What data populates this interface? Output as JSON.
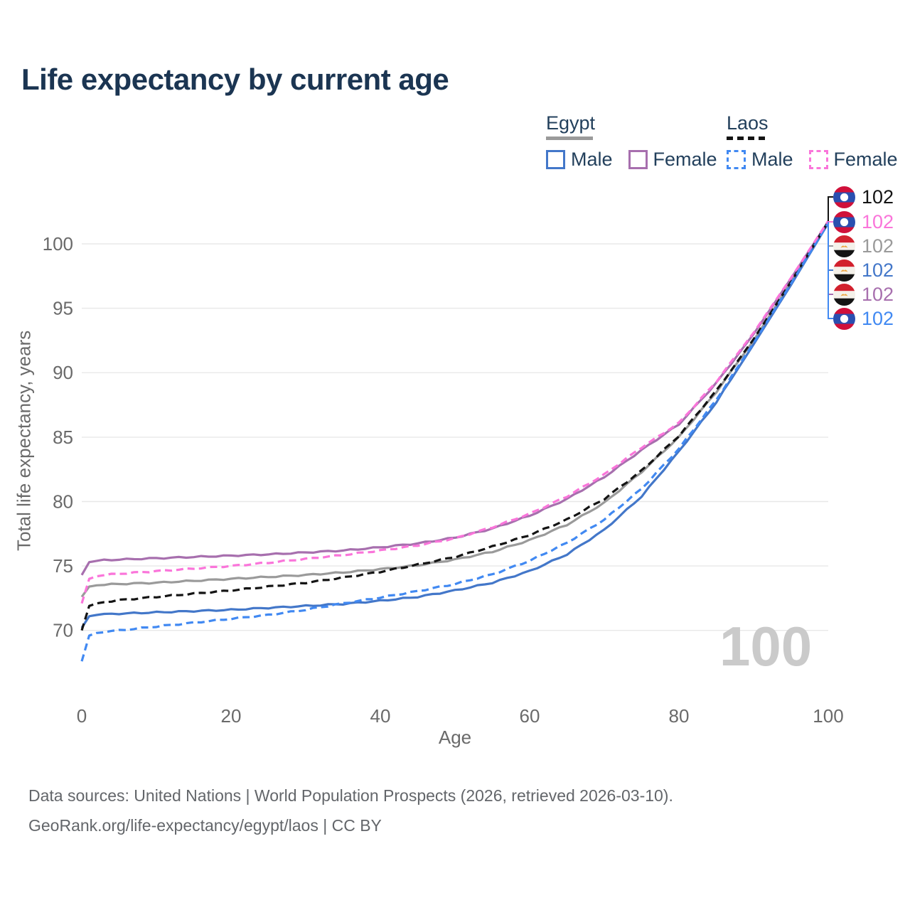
{
  "title": "Life expectancy by current age",
  "legend": {
    "groups": [
      {
        "label": "Egypt",
        "underline_color": "#9a9a9a",
        "dashed": false,
        "items": [
          {
            "label": "Male",
            "color": "#4377c9",
            "dashed": false
          },
          {
            "label": "Female",
            "color": "#a76fae",
            "dashed": false
          }
        ]
      },
      {
        "label": "Laos",
        "underline_color": "#141414",
        "dashed": true,
        "items": [
          {
            "label": "Male",
            "color": "#4189f2",
            "dashed": true
          },
          {
            "label": "Female",
            "color": "#fa75da",
            "dashed": true
          }
        ]
      }
    ]
  },
  "chart_data": {
    "type": "line",
    "title": "Life expectancy by current age",
    "xlabel": "Age",
    "ylabel": "Total life expectancy, years",
    "xlim": [
      0,
      100
    ],
    "ylim": [
      66.5,
      103
    ],
    "xticks": [
      0,
      20,
      40,
      60,
      80,
      100
    ],
    "yticks": [
      70,
      75,
      80,
      85,
      90,
      95,
      100
    ],
    "grid": "horizontal",
    "legend_position": "top-right",
    "x": [
      0,
      1,
      2,
      3,
      5,
      10,
      15,
      20,
      25,
      30,
      35,
      40,
      45,
      50,
      55,
      60,
      65,
      70,
      75,
      80,
      85,
      90,
      95,
      100
    ],
    "series": [
      {
        "name": "Egypt Both sexes",
        "country": "egypt",
        "color": "#9a9a9a",
        "dashed": false,
        "values": [
          72.6,
          73.4,
          73.5,
          73.55,
          73.6,
          73.7,
          73.85,
          74.0,
          74.15,
          74.3,
          74.5,
          74.75,
          75.05,
          75.5,
          76.1,
          77.0,
          78.2,
          79.9,
          82.3,
          85.0,
          88.5,
          92.5,
          97.0,
          101.68
        ]
      },
      {
        "name": "Egypt Male",
        "country": "egypt",
        "color": "#4377c9",
        "dashed": false,
        "values": [
          70.2,
          71.1,
          71.2,
          71.25,
          71.3,
          71.4,
          71.5,
          71.6,
          71.75,
          71.9,
          72.05,
          72.3,
          72.6,
          73.1,
          73.7,
          74.6,
          75.9,
          77.8,
          80.4,
          83.9,
          87.7,
          92.2,
          96.8,
          101.6
        ]
      },
      {
        "name": "Egypt Female",
        "country": "egypt",
        "color": "#a76fae",
        "dashed": false,
        "values": [
          74.3,
          75.3,
          75.4,
          75.45,
          75.5,
          75.6,
          75.7,
          75.8,
          75.9,
          76.05,
          76.2,
          76.45,
          76.75,
          77.2,
          77.9,
          78.9,
          80.2,
          81.9,
          84.0,
          86.0,
          89.2,
          93.0,
          97.3,
          101.74
        ]
      },
      {
        "name": "Laos Both sexes",
        "country": "laos",
        "color": "#141414",
        "dashed": true,
        "values": [
          70.0,
          71.9,
          72.1,
          72.2,
          72.35,
          72.6,
          72.85,
          73.1,
          73.4,
          73.7,
          74.1,
          74.55,
          75.1,
          75.7,
          76.5,
          77.4,
          78.6,
          80.2,
          82.4,
          85.1,
          88.6,
          92.6,
          97.05,
          101.7
        ]
      },
      {
        "name": "Laos Male",
        "country": "laos",
        "color": "#4189f2",
        "dashed": true,
        "values": [
          67.6,
          69.6,
          69.8,
          69.9,
          70.0,
          70.3,
          70.6,
          70.9,
          71.2,
          71.6,
          72.1,
          72.55,
          73.05,
          73.6,
          74.35,
          75.4,
          76.8,
          78.6,
          81.0,
          84.1,
          87.9,
          92.3,
          96.9,
          101.64
        ]
      },
      {
        "name": "Laos Female",
        "country": "laos",
        "color": "#fa75da",
        "dashed": true,
        "values": [
          72.1,
          74.0,
          74.2,
          74.3,
          74.4,
          74.6,
          74.8,
          75.0,
          75.25,
          75.55,
          75.85,
          76.2,
          76.6,
          77.15,
          78.0,
          79.05,
          80.4,
          82.1,
          84.2,
          86.1,
          89.3,
          93.1,
          97.35,
          101.78
        ]
      }
    ],
    "end_labels": [
      {
        "value": "102",
        "flag": "laos",
        "color": "#141414"
      },
      {
        "value": "102",
        "flag": "laos",
        "color": "#fa75da"
      },
      {
        "value": "102",
        "flag": "egypt",
        "color": "#9a9a9a"
      },
      {
        "value": "102",
        "flag": "egypt",
        "color": "#4377c9"
      },
      {
        "value": "102",
        "flag": "egypt",
        "color": "#a76fae"
      },
      {
        "value": "102",
        "flag": "laos",
        "color": "#4189f2"
      }
    ],
    "watermark": "100"
  },
  "footer": {
    "line1": "Data sources: United Nations | World Population Prospects (2026, retrieved 2026-03-10).",
    "line2": "GeoRank.org/life-expectancy/egypt/laos | CC BY"
  }
}
